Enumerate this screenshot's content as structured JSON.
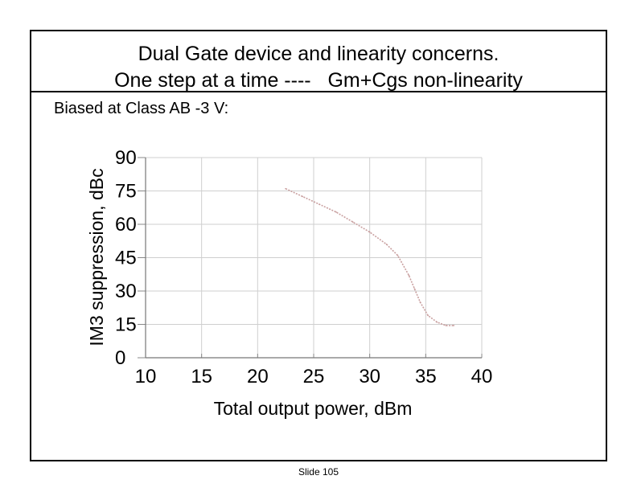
{
  "slide": {
    "title_line1": "Dual Gate device and linearity concerns.",
    "title_line2": "One step at a time ----   Gm+Cgs non-linearity",
    "subtitle": "Biased at Class AB -3 V:",
    "footer": "Slide 105"
  },
  "chart_data": {
    "type": "line",
    "xlabel": "Total output power, dBm",
    "ylabel": "IM3 suppression, dBc",
    "xlim": [
      10,
      40
    ],
    "ylim": [
      0,
      90
    ],
    "xticks": [
      "10",
      "15",
      "20",
      "25",
      "30",
      "35",
      "40"
    ],
    "yticks": [
      "0",
      "15",
      "30",
      "45",
      "60",
      "75",
      "90"
    ],
    "grid": true,
    "series": [
      {
        "color": "#c9a0a0",
        "x": [
          22.5,
          24,
          25.5,
          27,
          28.5,
          30,
          31.5,
          32.5,
          33.5,
          34,
          34.5,
          35.2,
          36,
          36.8,
          37.5
        ],
        "y": [
          76,
          72.5,
          69,
          65.5,
          61,
          56.5,
          51,
          46,
          37,
          31,
          25,
          19,
          16,
          14.5,
          14.5
        ]
      }
    ]
  }
}
